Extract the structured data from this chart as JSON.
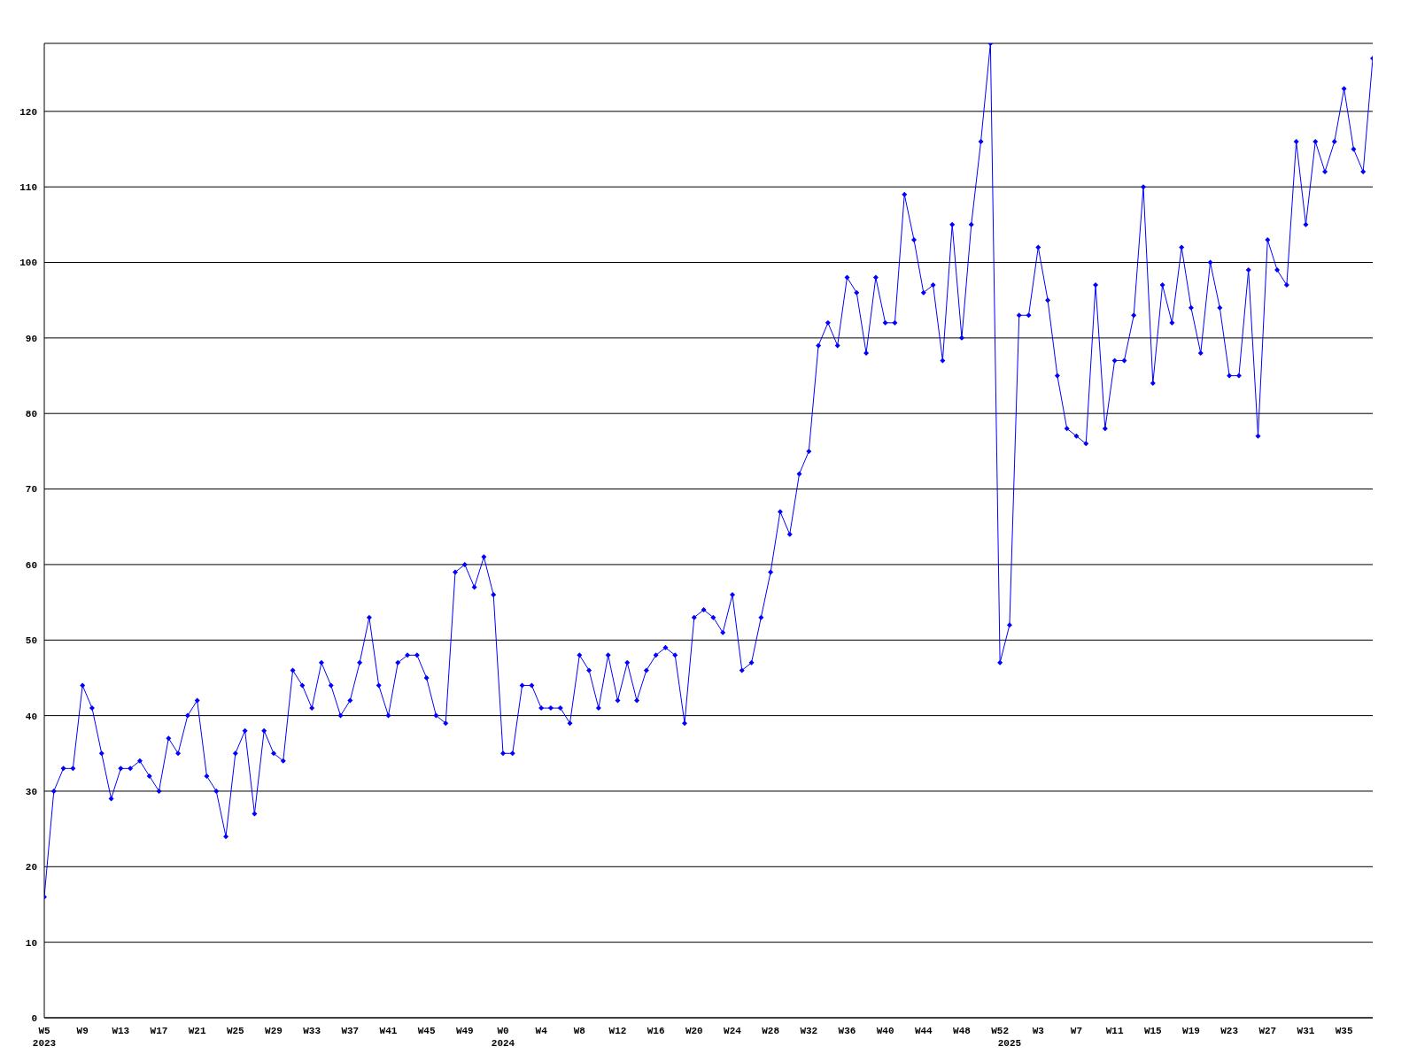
{
  "chart_data": {
    "type": "line",
    "categories": [
      "W5\n2023",
      null,
      null,
      null,
      "W9",
      null,
      null,
      null,
      "W13",
      null,
      null,
      null,
      "W17",
      null,
      null,
      null,
      "W21",
      null,
      null,
      null,
      "W25",
      null,
      null,
      null,
      "W29",
      null,
      null,
      null,
      "W33",
      null,
      null,
      null,
      "W37",
      null,
      null,
      null,
      "W41",
      null,
      null,
      null,
      "W45",
      null,
      null,
      null,
      "W49",
      null,
      null,
      null,
      "W0\n2024",
      null,
      null,
      null,
      "W4",
      null,
      null,
      null,
      "W8",
      null,
      null,
      null,
      "W12",
      null,
      null,
      null,
      "W16",
      null,
      null,
      null,
      "W20",
      null,
      null,
      null,
      "W24",
      null,
      null,
      null,
      "W28",
      null,
      null,
      null,
      "W32",
      null,
      null,
      null,
      "W36",
      null,
      null,
      null,
      "W40",
      null,
      null,
      null,
      "W44",
      null,
      null,
      null,
      "W48",
      null,
      null,
      null,
      "W52",
      "\n2025",
      null,
      null,
      "W3",
      null,
      null,
      null,
      "W7",
      null,
      null,
      null,
      "W11",
      null,
      null,
      null,
      "W15",
      null,
      null,
      null,
      "W19",
      null,
      null,
      null,
      "W23",
      null,
      null,
      null,
      "W27",
      null,
      null,
      null,
      "W31",
      null,
      null,
      null,
      "W35",
      null,
      null,
      null
    ],
    "series": [
      {
        "color": "#0000ff",
        "values": [
          16,
          30,
          33,
          33,
          44,
          41,
          35,
          29,
          33,
          33,
          34,
          32,
          30,
          37,
          35,
          40,
          42,
          32,
          30,
          24,
          35,
          38,
          27,
          38,
          35,
          34,
          46,
          44,
          41,
          47,
          44,
          40,
          42,
          47,
          53,
          44,
          40,
          47,
          48,
          48,
          45,
          40,
          39,
          59,
          60,
          57,
          61,
          56,
          35,
          35,
          44,
          44,
          41,
          41,
          41,
          39,
          48,
          46,
          41,
          48,
          42,
          47,
          42,
          46,
          48,
          49,
          48,
          39,
          53,
          54,
          53,
          51,
          56,
          46,
          47,
          53,
          59,
          67,
          64,
          72,
          75,
          89,
          92,
          89,
          98,
          96,
          88,
          98,
          92,
          92,
          109,
          103,
          96,
          97,
          87,
          105,
          90,
          105,
          116,
          129,
          47,
          52,
          93,
          93,
          102,
          95,
          85,
          78,
          77,
          76,
          97,
          78,
          87,
          87,
          93,
          110,
          84,
          97,
          92,
          102,
          94,
          88,
          100,
          94,
          85,
          85,
          99,
          77,
          103,
          99,
          97,
          116,
          105,
          116,
          112,
          116,
          123,
          115,
          112,
          127
        ]
      }
    ],
    "ylim": [
      0,
      129
    ],
    "yticks": [
      0,
      10,
      20,
      30,
      40,
      50,
      60,
      70,
      80,
      90,
      100,
      110,
      120
    ],
    "grid": "y",
    "marker": "diamond",
    "line_style": "solid",
    "legend": false
  }
}
